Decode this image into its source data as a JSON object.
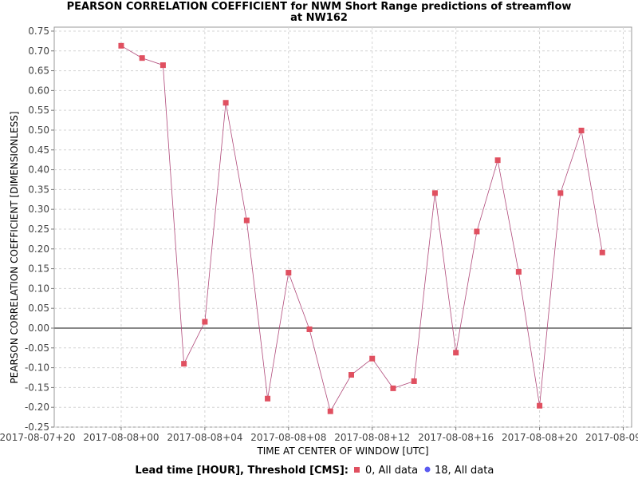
{
  "chart_data": {
    "type": "line",
    "title_line1": "PEARSON CORRELATION COEFFICIENT for NWM Short Range predictions of streamflow",
    "title_line2": "at NW162",
    "xlabel": "TIME AT CENTER OF WINDOW [UTC]",
    "ylabel": "PEARSON CORRELATION COEFFICIENT [DIMENSIONLESS]",
    "ylim": [
      -0.25,
      0.76
    ],
    "yticks": [
      -0.25,
      -0.2,
      -0.15,
      -0.1,
      -0.05,
      0.0,
      0.05,
      0.1,
      0.15,
      0.2,
      0.25,
      0.3,
      0.35,
      0.4,
      0.45,
      0.5,
      0.55,
      0.6,
      0.65,
      0.7,
      0.75
    ],
    "ytick_labels": [
      "-0.25",
      "-0.20",
      "-0.15",
      "-0.10",
      "-0.05",
      "0.00",
      "0.05",
      "0.10",
      "0.15",
      "0.20",
      "0.25",
      "0.30",
      "0.35",
      "0.40",
      "0.45",
      "0.50",
      "0.55",
      "0.60",
      "0.65",
      "0.70",
      "0.75"
    ],
    "xlim_hours": [
      -3.2,
      24.4
    ],
    "xtick_hours": [
      -4,
      0,
      4,
      8,
      12,
      16,
      20,
      24
    ],
    "xtick_labels": [
      "2017-08-07+20",
      "2017-08-08+00",
      "2017-08-08+04",
      "2017-08-08+08",
      "2017-08-08+12",
      "2017-08-08+16",
      "2017-08-08+20",
      "2017-08-09+00"
    ],
    "grid": true,
    "zero_line": true,
    "legend_title": "Lead time [HOUR], Threshold [CMS]:",
    "legend_placement": "bottom",
    "series": [
      {
        "name": "0, All data",
        "color": "#e05060",
        "line_color": "#b04a7a",
        "marker": "square",
        "x_hours": [
          0,
          1,
          2,
          3,
          4,
          5,
          6,
          7,
          8,
          9,
          10,
          11,
          12,
          13,
          14,
          15,
          16,
          17,
          18,
          19,
          20,
          21,
          22,
          23
        ],
        "values": [
          0.713,
          0.682,
          0.664,
          -0.09,
          0.016,
          0.569,
          0.272,
          -0.178,
          0.14,
          -0.003,
          -0.21,
          -0.118,
          -0.077,
          -0.152,
          -0.134,
          0.341,
          -0.062,
          0.244,
          0.424,
          0.142,
          -0.196,
          0.341,
          0.499,
          0.191
        ]
      },
      {
        "name": "18, All data",
        "color": "#5b5bf0",
        "marker": "circle",
        "x_hours": [],
        "values": []
      }
    ]
  }
}
